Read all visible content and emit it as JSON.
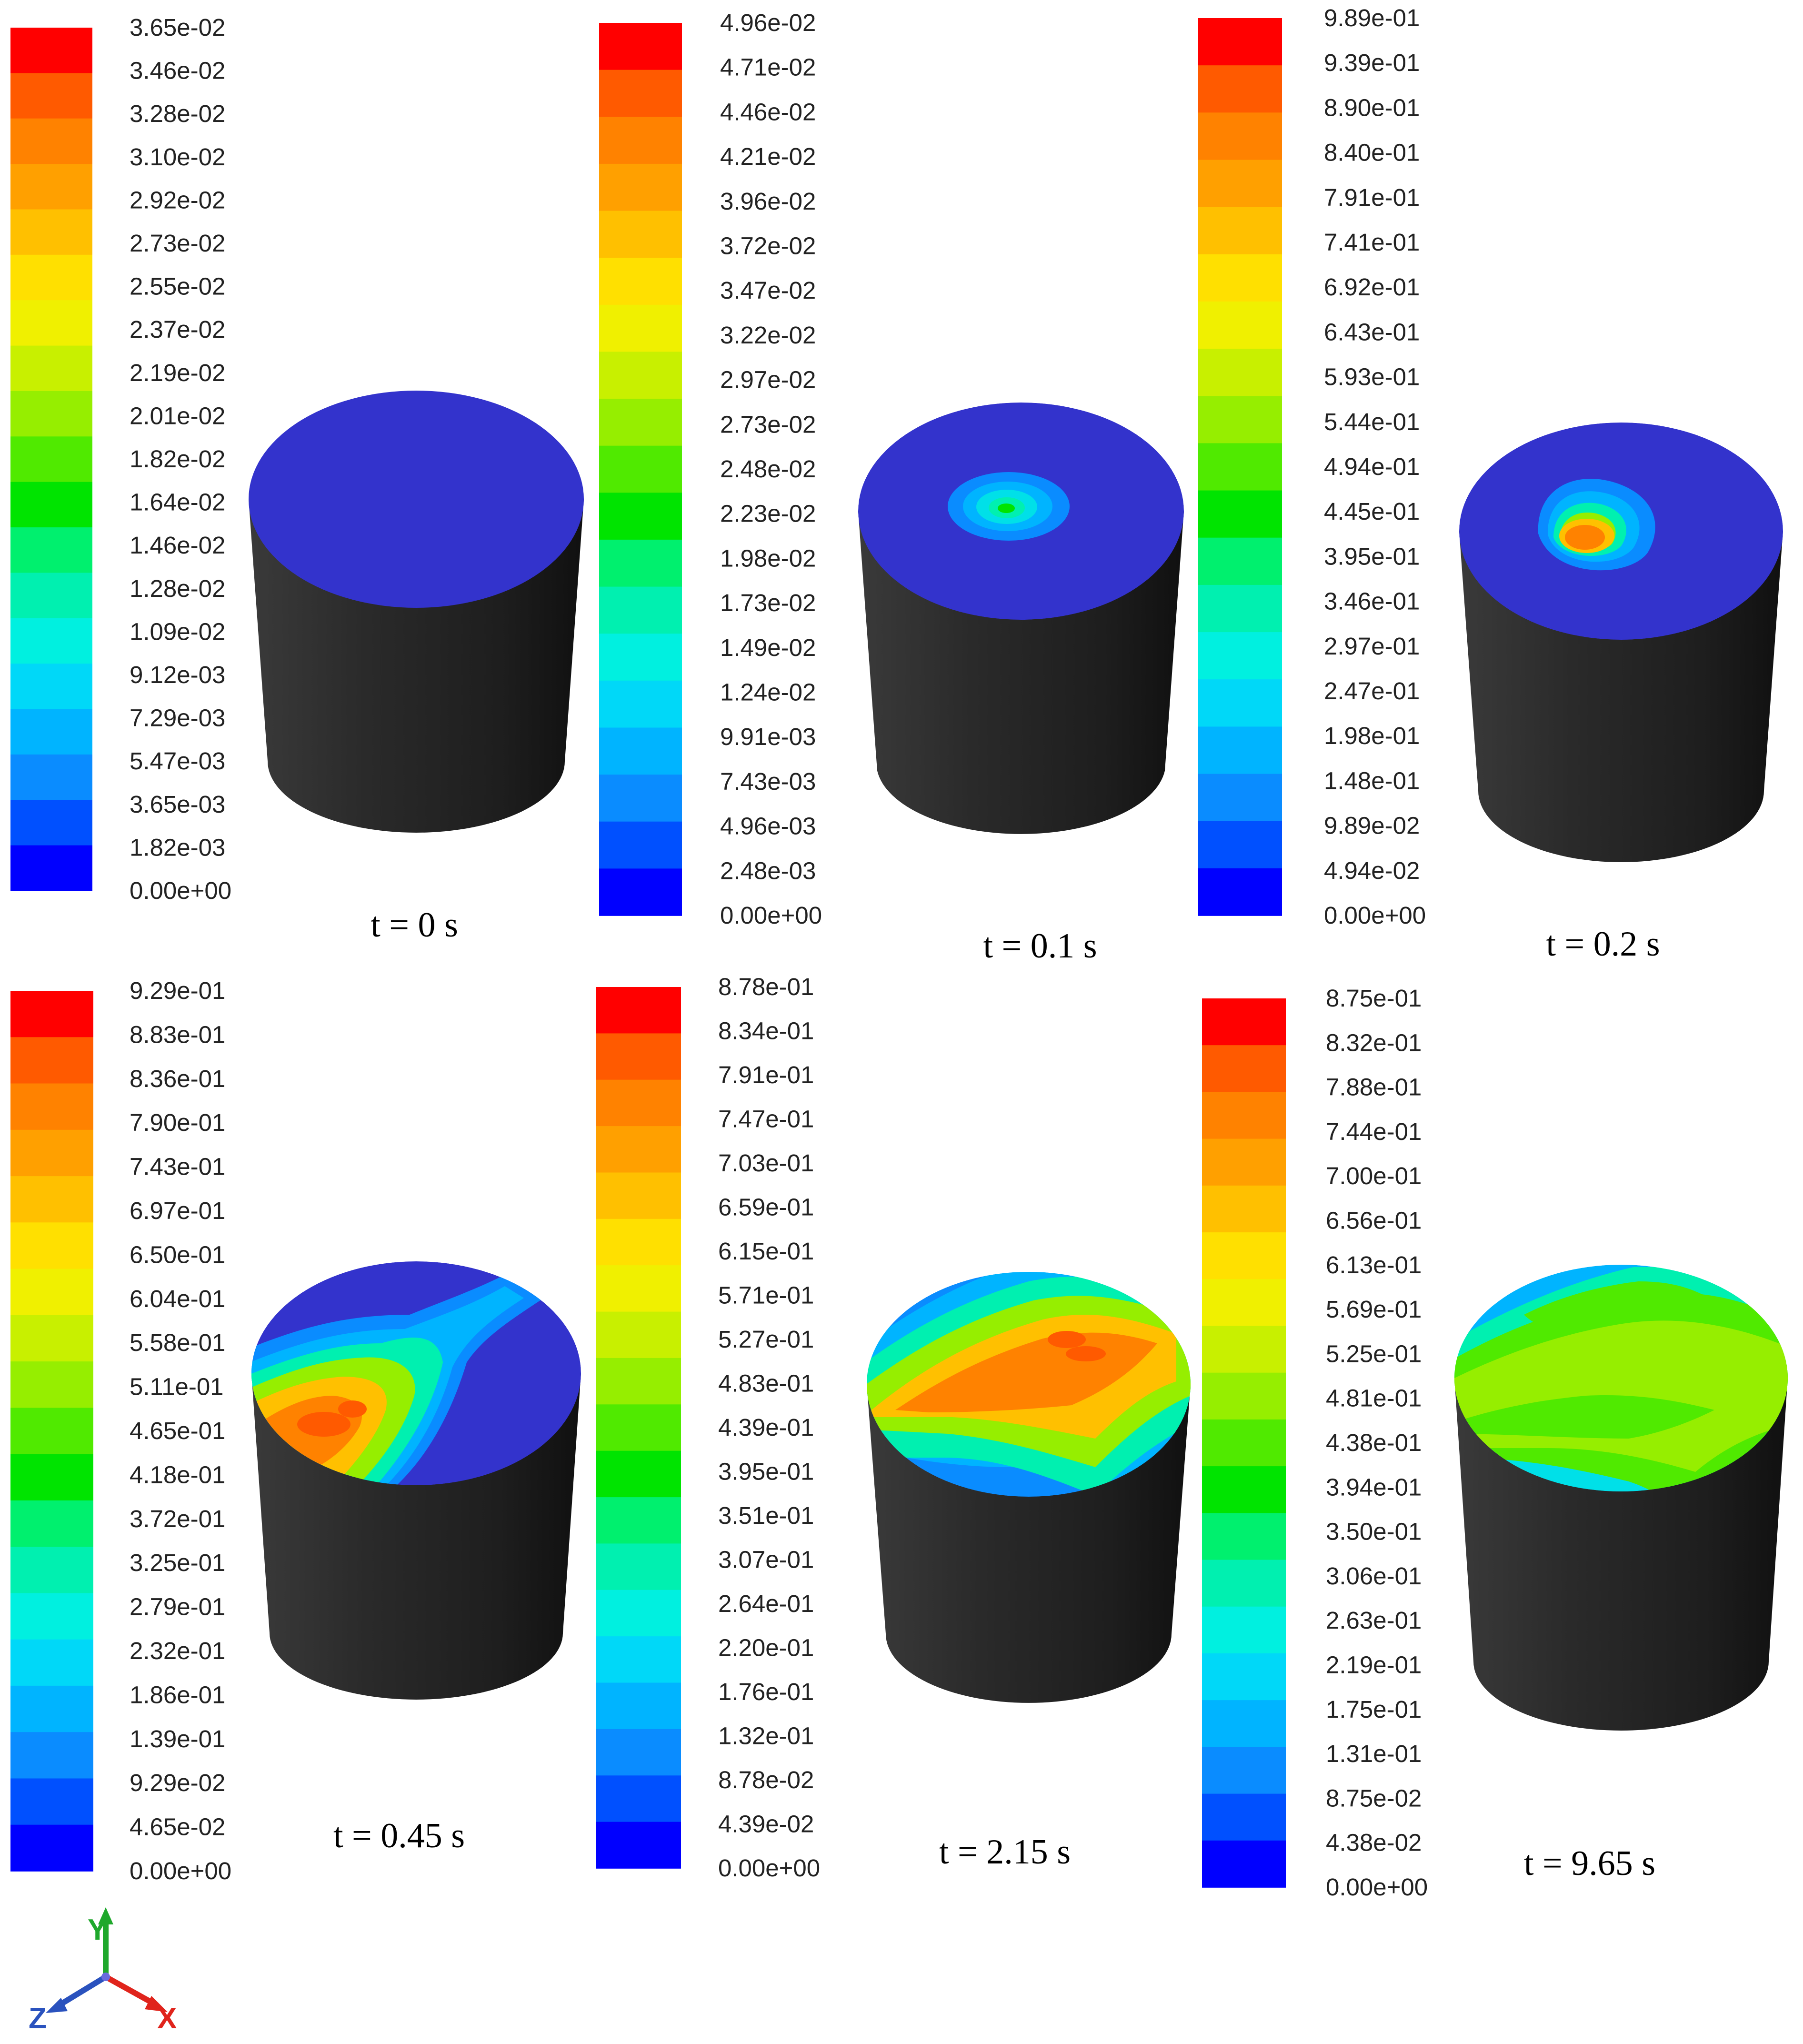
{
  "colormap": [
    "#0000ff",
    "#0050ff",
    "#0a8cff",
    "#00b4ff",
    "#00d8f8",
    "#00f0e0",
    "#00f0b0",
    "#00f06e",
    "#00e400",
    "#50ea00",
    "#96ee00",
    "#c8f000",
    "#f0f000",
    "#ffe000",
    "#ffc000",
    "#ffa000",
    "#ff8200",
    "#ff5a00",
    "#ff0000"
  ],
  "body_color": "#262626",
  "background_color": "#3333cc",
  "panels": [
    {
      "caption": "t = 0 s",
      "legend_labels": [
        "3.65e-02",
        "3.46e-02",
        "3.28e-02",
        "3.10e-02",
        "2.92e-02",
        "2.73e-02",
        "2.55e-02",
        "2.37e-02",
        "2.19e-02",
        "2.01e-02",
        "1.82e-02",
        "1.64e-02",
        "1.46e-02",
        "1.28e-02",
        "1.09e-02",
        "9.12e-03",
        "7.29e-03",
        "5.47e-03",
        "3.65e-03",
        "1.82e-03",
        "0.00e+00"
      ]
    },
    {
      "caption": "t = 0.1 s",
      "legend_labels": [
        "4.96e-02",
        "4.71e-02",
        "4.46e-02",
        "4.21e-02",
        "3.96e-02",
        "3.72e-02",
        "3.47e-02",
        "3.22e-02",
        "2.97e-02",
        "2.73e-02",
        "2.48e-02",
        "2.23e-02",
        "1.98e-02",
        "1.73e-02",
        "1.49e-02",
        "1.24e-02",
        "9.91e-03",
        "7.43e-03",
        "4.96e-03",
        "2.48e-03",
        "0.00e+00"
      ]
    },
    {
      "caption": "t = 0.2 s",
      "legend_labels": [
        "9.89e-01",
        "9.39e-01",
        "8.90e-01",
        "8.40e-01",
        "7.91e-01",
        "7.41e-01",
        "6.92e-01",
        "6.43e-01",
        "5.93e-01",
        "5.44e-01",
        "4.94e-01",
        "4.45e-01",
        "3.95e-01",
        "3.46e-01",
        "2.97e-01",
        "2.47e-01",
        "1.98e-01",
        "1.48e-01",
        "9.89e-02",
        "4.94e-02",
        "0.00e+00"
      ]
    },
    {
      "caption": "t = 0.45 s",
      "legend_labels": [
        "9.29e-01",
        "8.83e-01",
        "8.36e-01",
        "7.90e-01",
        "7.43e-01",
        "6.97e-01",
        "6.50e-01",
        "6.04e-01",
        "5.58e-01",
        "5.11e-01",
        "4.65e-01",
        "4.18e-01",
        "3.72e-01",
        "3.25e-01",
        "2.79e-01",
        "2.32e-01",
        "1.86e-01",
        "1.39e-01",
        "9.29e-02",
        "4.65e-02",
        "0.00e+00"
      ]
    },
    {
      "caption": "t = 2.15 s",
      "legend_labels": [
        "8.78e-01",
        "8.34e-01",
        "7.91e-01",
        "7.47e-01",
        "7.03e-01",
        "6.59e-01",
        "6.15e-01",
        "5.71e-01",
        "5.27e-01",
        "4.83e-01",
        "4.39e-01",
        "3.95e-01",
        "3.51e-01",
        "3.07e-01",
        "2.64e-01",
        "2.20e-01",
        "1.76e-01",
        "1.32e-01",
        "8.78e-02",
        "4.39e-02",
        "0.00e+00"
      ]
    },
    {
      "caption": "t = 9.65 s",
      "legend_labels": [
        "8.75e-01",
        "8.32e-01",
        "7.88e-01",
        "7.44e-01",
        "7.00e-01",
        "6.56e-01",
        "6.13e-01",
        "5.69e-01",
        "5.25e-01",
        "4.81e-01",
        "4.38e-01",
        "3.94e-01",
        "3.50e-01",
        "3.06e-01",
        "2.63e-01",
        "2.19e-01",
        "1.75e-01",
        "1.31e-01",
        "8.75e-02",
        "4.38e-02",
        "0.00e+00"
      ]
    }
  ],
  "axis_triad": {
    "labels": {
      "y": "Y",
      "z": "Z",
      "x": "X"
    },
    "colors": {
      "y": "#1fa82c",
      "z": "#2a52be",
      "x": "#e0241c"
    }
  }
}
